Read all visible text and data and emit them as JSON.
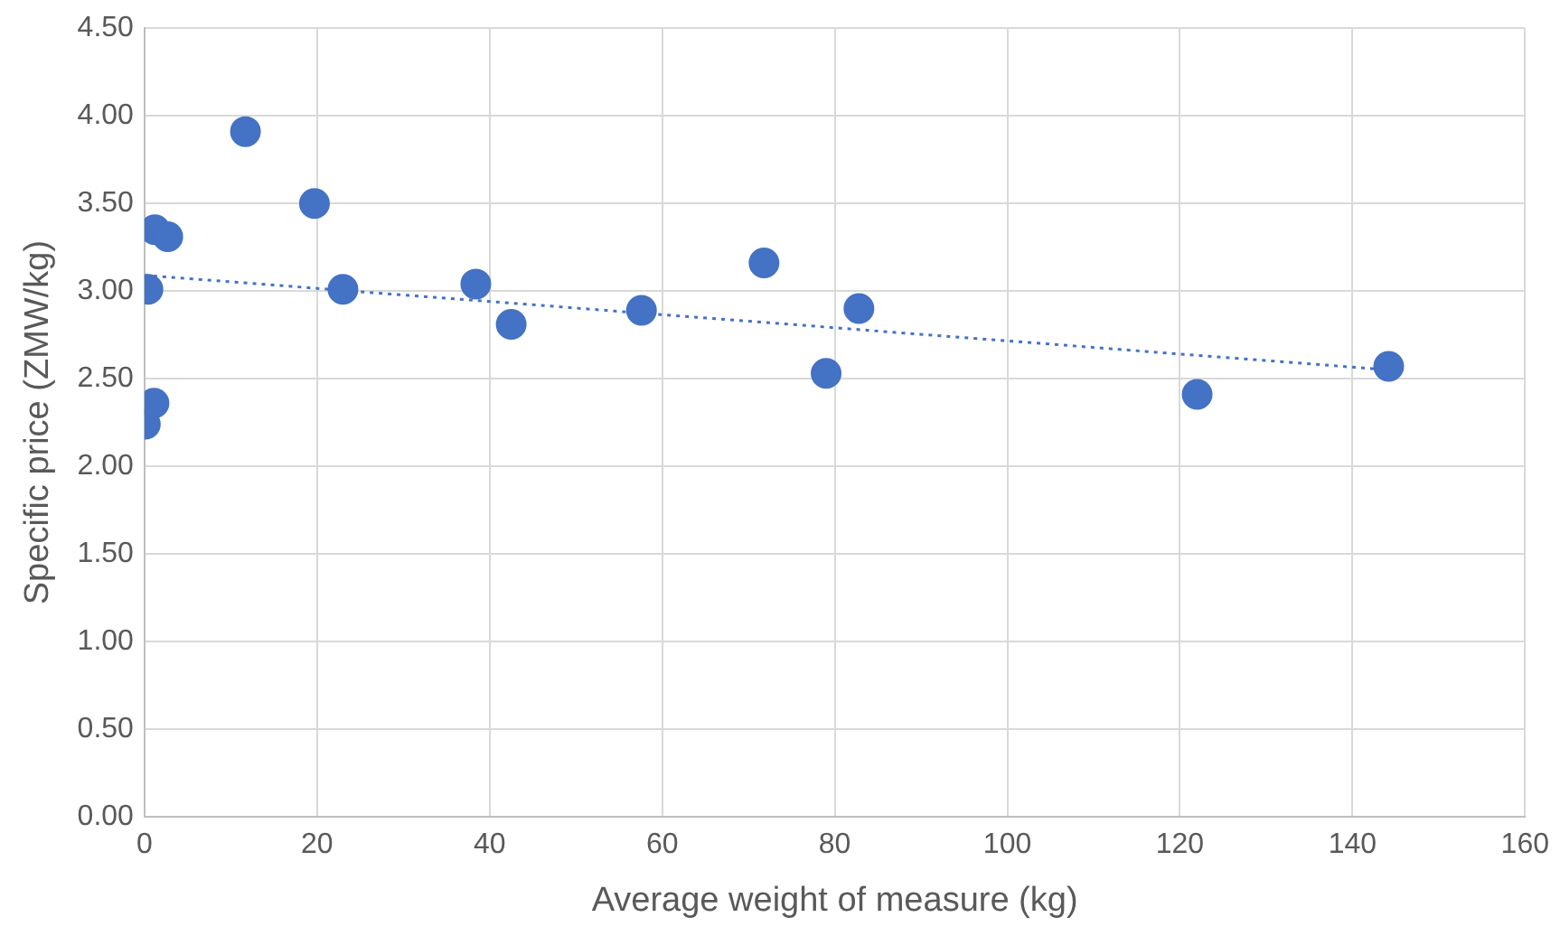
{
  "chart_data": {
    "type": "scatter",
    "xlabel": "Average weight of measure (kg)",
    "ylabel": "Specific price (ZMW/kg)",
    "series": [
      {
        "type": "scatter",
        "color": "#4472c4",
        "marker": "circle",
        "x": [
          0.1,
          1.1,
          0.4,
          1.2,
          2.7,
          11.7,
          19.7,
          23.0,
          38.4,
          42.5,
          57.6,
          71.8,
          79.0,
          82.8,
          122.0,
          144.2
        ],
        "values": [
          2.24,
          2.36,
          3.01,
          3.35,
          3.31,
          3.91,
          3.5,
          3.01,
          3.04,
          2.81,
          2.89,
          3.16,
          2.53,
          2.9,
          2.41,
          2.57
        ]
      },
      {
        "type": "line",
        "color": "#4472c4",
        "line_style": "dotted",
        "marker": "none",
        "x": [
          0,
          144.2
        ],
        "values": [
          3.09,
          2.55
        ]
      }
    ],
    "xlim": [
      0,
      160
    ],
    "xticks": [
      0,
      20,
      40,
      60,
      80,
      100,
      120,
      140,
      160
    ],
    "ylim": [
      0,
      4.5
    ],
    "yticks": [
      {
        "value": 0,
        "label": "0.00"
      },
      {
        "value": 0.5,
        "label": "0.50"
      },
      {
        "value": 1,
        "label": "1.00"
      },
      {
        "value": 1.5,
        "label": "1.50"
      },
      {
        "value": 2,
        "label": "2.00"
      },
      {
        "value": 2.5,
        "label": "2.50"
      },
      {
        "value": 3,
        "label": "3.00"
      },
      {
        "value": 3.5,
        "label": "3.50"
      },
      {
        "value": 4,
        "label": "4.00"
      },
      {
        "value": 4.5,
        "label": "4.50"
      }
    ],
    "grid": true,
    "legend": false
  }
}
